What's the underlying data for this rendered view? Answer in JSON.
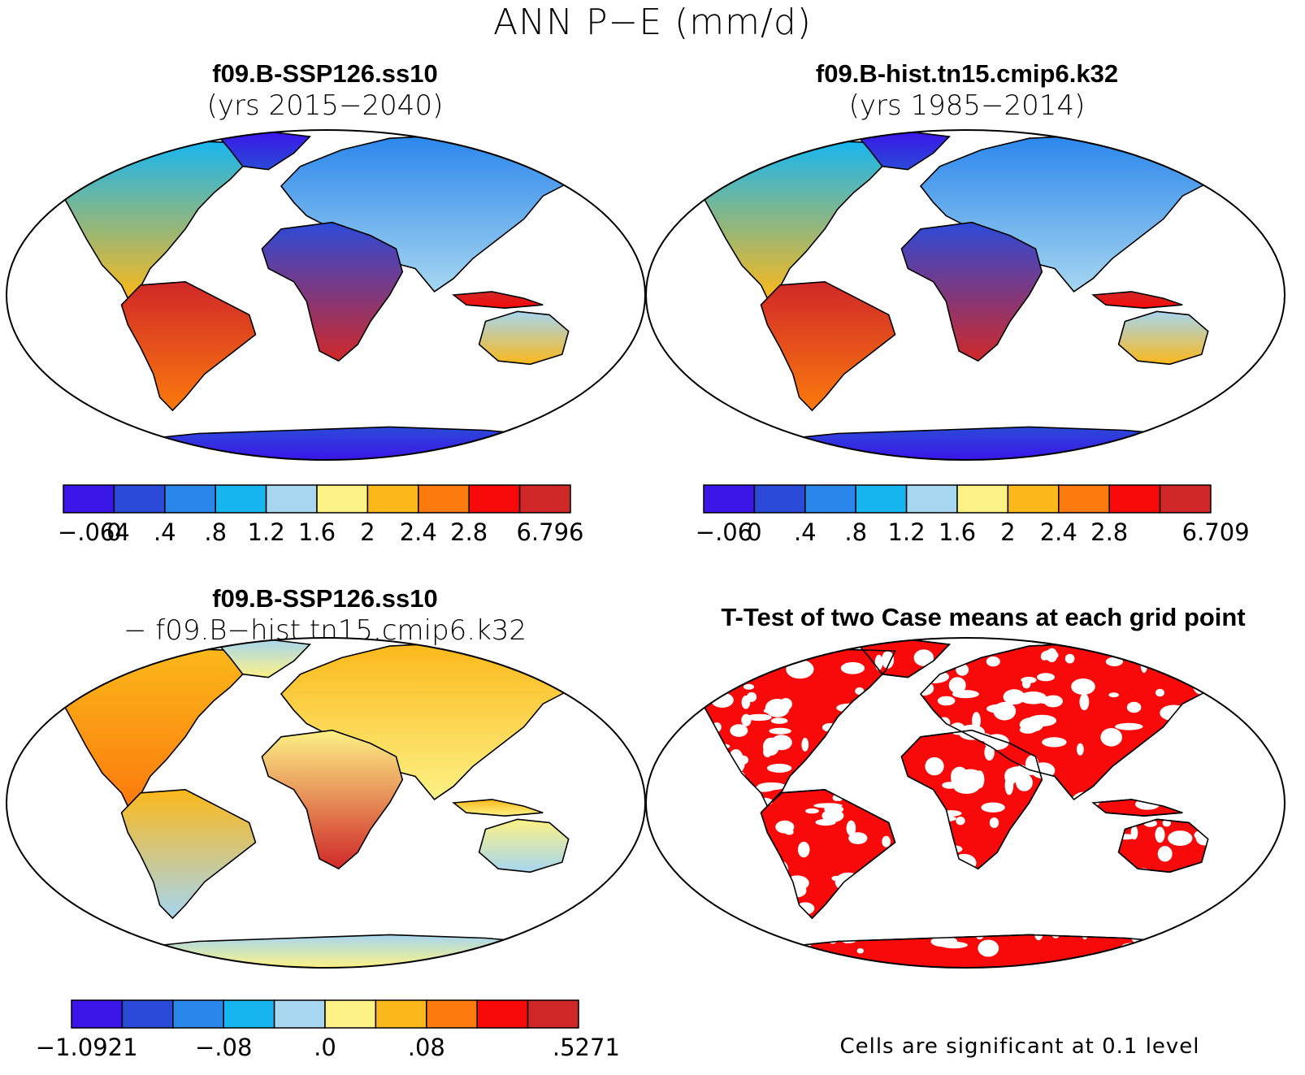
{
  "figure": {
    "title": "ANN P−E (mm/d)"
  },
  "panels": {
    "case1": {
      "name": "f09.B-SSP126.ss10",
      "years": "(yrs 2015−2040)",
      "colorbar": {
        "colors": [
          "#3a16e8",
          "#2b4ad8",
          "#2b86ec",
          "#18b6f0",
          "#a6d6f0",
          "#fcf286",
          "#fbb81a",
          "#fb7a0d",
          "#f80a0a",
          "#d02828"
        ],
        "labels": [
          "−.064",
          "0",
          ".4",
          ".8",
          "1.2",
          "1.6",
          "2",
          "2.4",
          "2.8",
          "6.796"
        ]
      }
    },
    "case2": {
      "name": "f09.B-hist.tn15.cmip6.k32",
      "years": "(yrs 1985−2014)",
      "colorbar": {
        "colors": [
          "#3a16e8",
          "#2b4ad8",
          "#2b86ec",
          "#18b6f0",
          "#a6d6f0",
          "#fcf286",
          "#fbb81a",
          "#fb7a0d",
          "#f80a0a",
          "#d02828"
        ],
        "labels": [
          "−.06",
          "0",
          ".4",
          ".8",
          "1.2",
          "1.6",
          "2",
          "2.4",
          "2.8",
          "6.709"
        ]
      }
    },
    "diff": {
      "name": "f09.B-SSP126.ss10",
      "minus": "−  f09.B−hist.tn15.cmip6.k32",
      "colorbar": {
        "colors": [
          "#3a16e8",
          "#2b4ad8",
          "#2b86ec",
          "#18b6f0",
          "#a6d6f0",
          "#fcf286",
          "#fbb81a",
          "#fb7a0d",
          "#f80a0a",
          "#d02828"
        ],
        "labels": [
          "−1.0921",
          "−.08",
          ".0",
          ".08",
          ".5271"
        ]
      }
    },
    "ttest": {
      "title": "T-Test of two Case means at each grid point",
      "note": "Cells are significant at 0.1 level",
      "significant_color": "#f80a0a"
    }
  }
}
